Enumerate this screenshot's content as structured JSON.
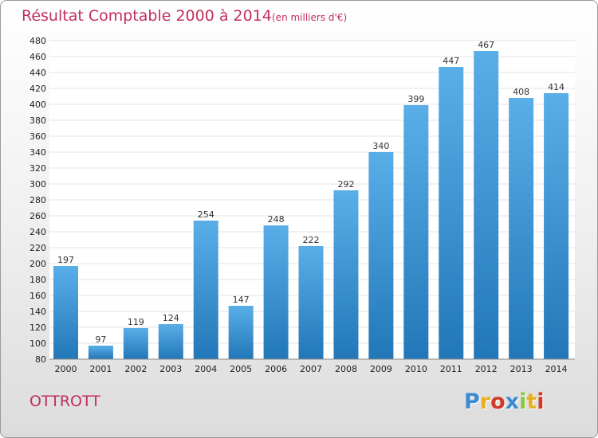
{
  "title": "Résultat Comptable 2000 à 2014",
  "subtitle": "(en milliers d'€)",
  "commune": "OTTROTT",
  "logo": {
    "text": "Proxiti",
    "letters": [
      "P",
      "r",
      "o",
      "x",
      "i",
      "t",
      "i"
    ],
    "colors": [
      "#3a8bd0",
      "#e8b020",
      "#d03a2a",
      "#3a8bd0",
      "#8cc63e",
      "#e8b020",
      "#d03a2a"
    ]
  },
  "colors": {
    "bar_top": "#5aaee8",
    "bar_bottom": "#2277b8",
    "title": "#c0305a",
    "plot_bg": "#ffffff"
  },
  "chart_data": {
    "type": "bar",
    "title": "Résultat Comptable 2000 à 2014",
    "subtitle": "(en milliers d'€)",
    "xlabel": "",
    "ylabel": "",
    "categories": [
      "2000",
      "2001",
      "2002",
      "2003",
      "2004",
      "2005",
      "2006",
      "2007",
      "2008",
      "2009",
      "2010",
      "2011",
      "2012",
      "2013",
      "2014"
    ],
    "values": [
      197,
      97,
      119,
      124,
      254,
      147,
      248,
      222,
      292,
      340,
      399,
      447,
      467,
      408,
      414
    ],
    "value_labels": [
      "197",
      "97",
      "119",
      "124",
      "254",
      "147",
      "248",
      "222",
      "292",
      "340",
      "399",
      "447",
      "467",
      "408",
      "414"
    ],
    "ylim": [
      80,
      480
    ],
    "yticks": [
      "80",
      "100",
      "120",
      "140",
      "160",
      "180",
      "200",
      "220",
      "240",
      "260",
      "280",
      "300",
      "320",
      "340",
      "360",
      "380",
      "400",
      "420",
      "440",
      "460",
      "480"
    ],
    "grid": true,
    "legend": "none"
  }
}
